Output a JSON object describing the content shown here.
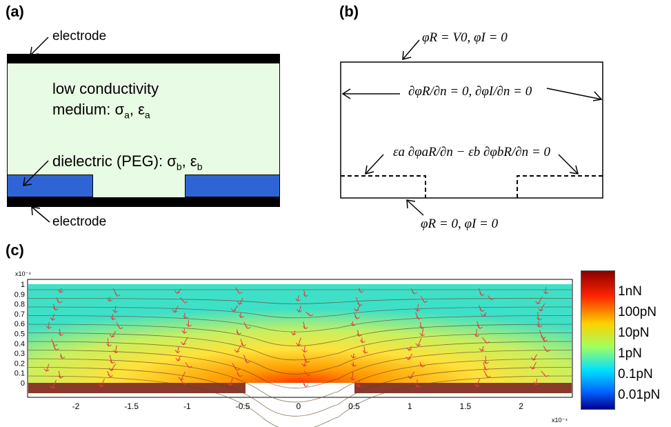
{
  "panel_a": {
    "label": "(a)",
    "electrode_top": "electrode",
    "electrode_bottom": "electrode",
    "medium_line1": "low conductivity",
    "medium_line2_prefix": "medium: σ",
    "medium_sub_a": "a",
    "medium_eps": ", ε",
    "medium_sub_a2": "a",
    "dielectric_prefix": "dielectric (PEG): σ",
    "dielectric_sub_b": "b",
    "dielectric_eps": ", ε",
    "dielectric_sub_b2": "b",
    "colors": {
      "medium": "#e8fbe4",
      "dielectric": "#2f64d4",
      "electrode": "#000000"
    }
  },
  "panel_b": {
    "label": "(b)",
    "top_bc": "φR = V0, φI = 0",
    "side_bc": "∂φR/∂n = 0, ∂φI/∂n = 0",
    "interface_bc": "εa ∂φaR/∂n − εb ∂φbR/∂n = 0",
    "bottom_bc": "φR = 0, φI = 0"
  },
  "panel_c": {
    "label": "(c)",
    "y_exponent": "x10⁻⁴",
    "x_exponent": "x10⁻⁴",
    "y_ticks": [
      "1",
      "0.9",
      "0.8",
      "0.7",
      "0.6",
      "0.5",
      "0.4",
      "0.3",
      "0.2",
      "0.1",
      "0"
    ],
    "x_ticks": [
      "-2",
      "-1.5",
      "-1",
      "-0.5",
      "0",
      "0.5",
      "1",
      "1.5",
      "2"
    ],
    "colorbar_labels": [
      "1nN",
      "100pN",
      "10pN",
      "1pN",
      "0.1pN",
      "0.01pN"
    ],
    "colorbar_colors": [
      "#8b0000",
      "#ff2200",
      "#ffd000",
      "#a0ff60",
      "#00e0ff",
      "#0060ff",
      "#00008b"
    ]
  }
}
